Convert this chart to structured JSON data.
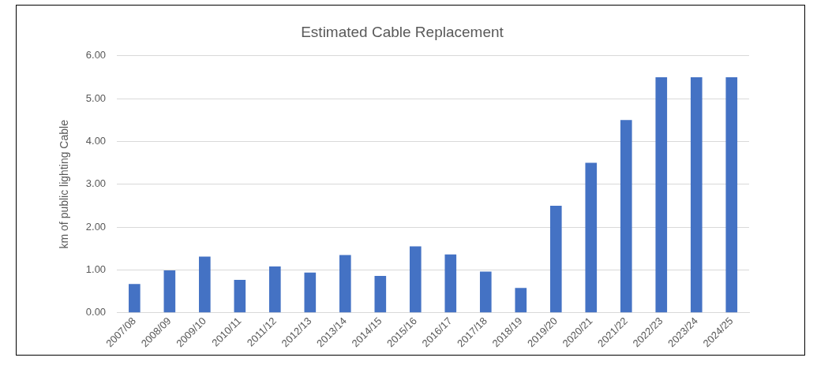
{
  "chart_data": {
    "type": "bar",
    "title": "Estimated Cable Replacement",
    "ylabel": "km of public lighting Cable",
    "categories": [
      "2007/08",
      "2008/09",
      "2009/10",
      "2010/11",
      "2011/12",
      "2012/13",
      "2013/14",
      "2014/15",
      "2015/16",
      "2016/17",
      "2017/18",
      "2018/19",
      "2019/20",
      "2020/21",
      "2021/22",
      "2022/23",
      "2023/24",
      "2024/25"
    ],
    "values": [
      0.67,
      0.99,
      1.31,
      0.77,
      1.08,
      0.94,
      1.35,
      0.86,
      1.55,
      1.36,
      0.96,
      0.58,
      2.5,
      3.5,
      4.5,
      5.5,
      5.5,
      5.5
    ],
    "color": "#4472c4",
    "ylim": [
      0,
      6
    ],
    "yticks": [
      {
        "value": 0,
        "label": "0.00"
      },
      {
        "value": 1,
        "label": "1.00"
      },
      {
        "value": 2,
        "label": "2.00"
      },
      {
        "value": 3,
        "label": "3.00"
      },
      {
        "value": 4,
        "label": "4.00"
      },
      {
        "value": 5,
        "label": "5.00"
      },
      {
        "value": 6,
        "label": "6.00"
      }
    ],
    "grid": "y"
  }
}
